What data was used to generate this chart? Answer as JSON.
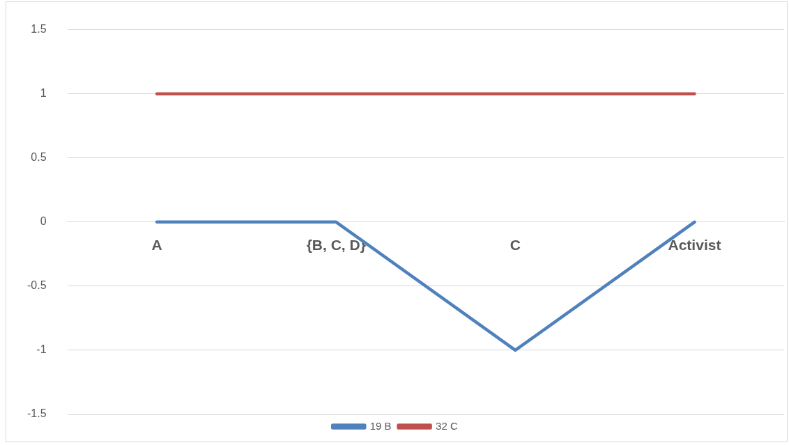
{
  "chart_data": {
    "type": "line",
    "categories": [
      "A",
      "{B, C, D}",
      "C",
      "Activist"
    ],
    "series": [
      {
        "name": "19 B",
        "color": "#4f81bd",
        "values": [
          0,
          0,
          -1,
          0
        ]
      },
      {
        "name": "32 C",
        "color": "#c0504d",
        "values": [
          1,
          1,
          1,
          1
        ]
      }
    ],
    "ylim": [
      -1.5,
      1.5
    ],
    "yticks": [
      -1.5,
      -1,
      -0.5,
      0,
      0.5,
      1,
      1.5
    ],
    "grid": "y",
    "legend": "bottom"
  }
}
